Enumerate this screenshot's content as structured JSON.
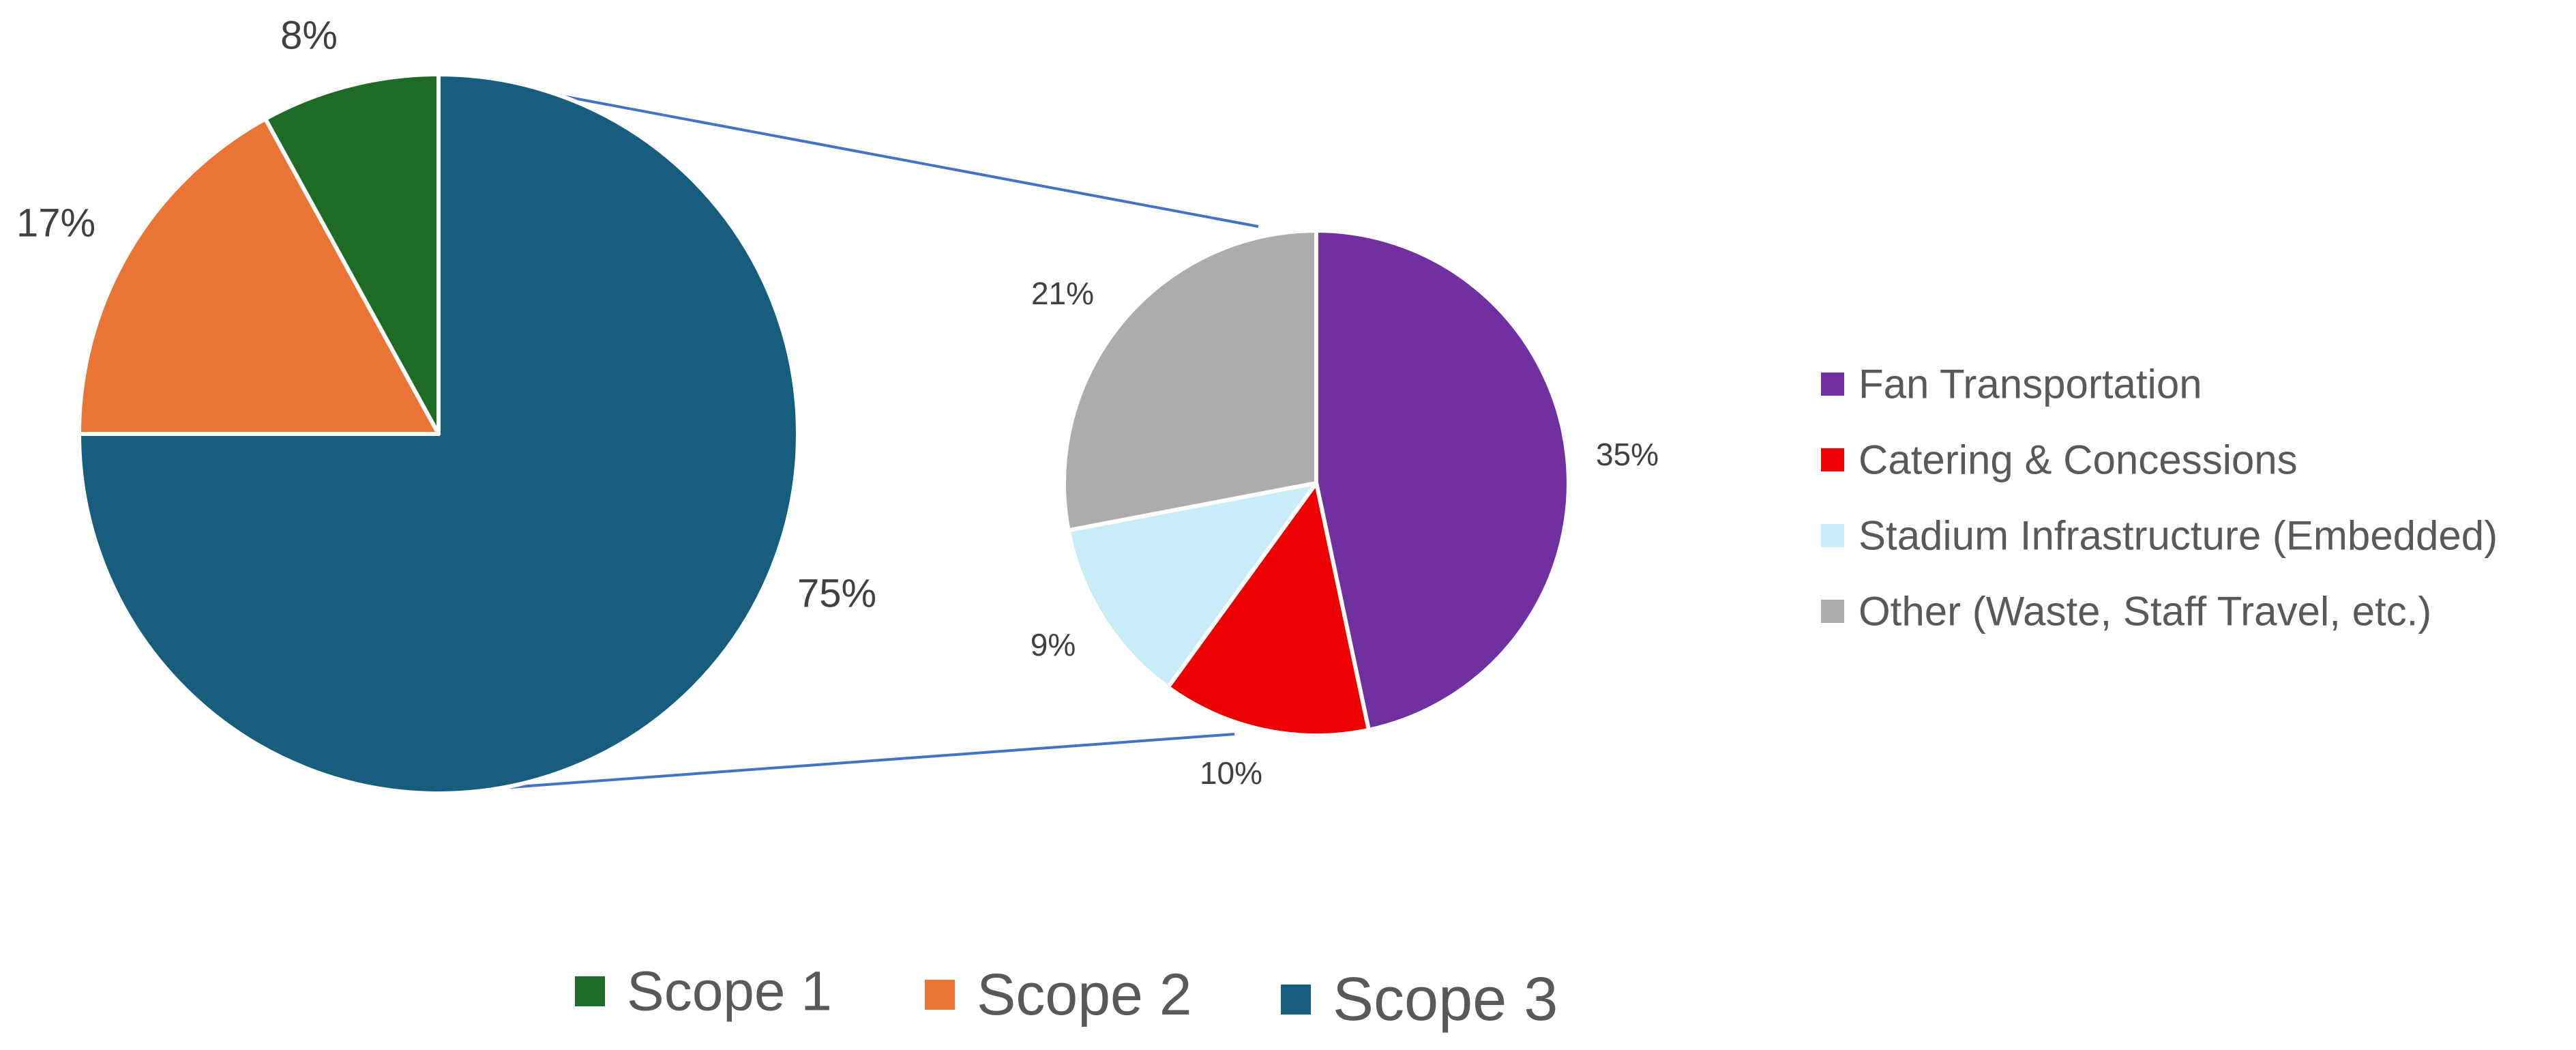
{
  "chart_data": [
    {
      "type": "pie",
      "role": "main",
      "categories": [
        "Scope 1",
        "Scope 2",
        "Scope 3"
      ],
      "values": [
        8,
        17,
        75
      ],
      "labels": [
        "8%",
        "17%",
        "75%"
      ],
      "colors": [
        "#1d6b25",
        "#e97434",
        "#175e7e"
      ],
      "legend": [
        "Scope 1",
        "Scope 2",
        "Scope 3"
      ],
      "legend_position": "bottom",
      "exploded_slice": "Scope 3"
    },
    {
      "type": "pie",
      "role": "breakdown of Scope 3",
      "categories": [
        "Fan Transportation",
        "Catering & Concessions",
        "Stadium Infrastructure (Embedded)",
        "Other (Waste, Staff Travel, etc.)"
      ],
      "values": [
        35,
        10,
        9,
        21
      ],
      "labels": [
        "35%",
        "10%",
        "9%",
        "21%"
      ],
      "colors": [
        "#7030a0",
        "#ee0000",
        "#c9ecf9",
        "#acacac"
      ],
      "legend": [
        "Fan Transportation",
        "Catering & Concessions",
        "Stadium Infrastructure (Embedded)",
        "Other (Waste, Staff Travel, etc.)"
      ],
      "legend_position": "right"
    }
  ],
  "connector_color": "#4472c4"
}
